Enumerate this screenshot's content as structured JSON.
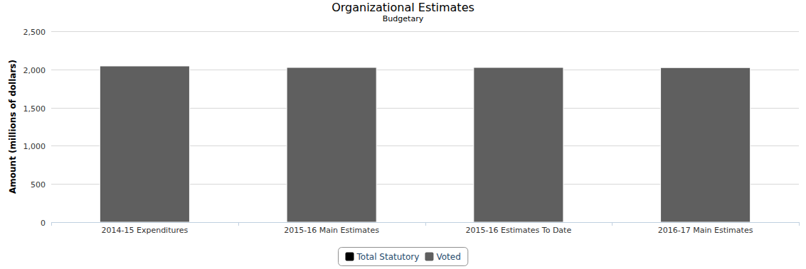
{
  "chart_data": {
    "type": "bar",
    "title": "Organizational Estimates",
    "subtitle": "Budgetary",
    "y_label": "Amount (millions of dollars)",
    "categories": [
      "2014-15 Expenditures",
      "2015-16 Main Estimates",
      "2015-16 Estimates To Date",
      "2016-17 Main Estimates"
    ],
    "series": [
      {
        "name": "Total Statutory",
        "color": "#000000",
        "values": [
          0,
          0,
          0,
          0
        ]
      },
      {
        "name": "Voted",
        "color": "#5f5f5f",
        "values": [
          2045,
          2026,
          2026,
          2024
        ]
      }
    ],
    "ylim": [
      0,
      2500
    ],
    "yticks": [
      0,
      500,
      {
        "value": 1000,
        "label": "1,000"
      },
      {
        "value": 1500,
        "label": "1,500"
      },
      {
        "value": 2000,
        "label": "2,000"
      },
      {
        "value": 2500,
        "label": "2,500"
      }
    ],
    "grid": true,
    "stacked": true,
    "legend": "bottom"
  }
}
